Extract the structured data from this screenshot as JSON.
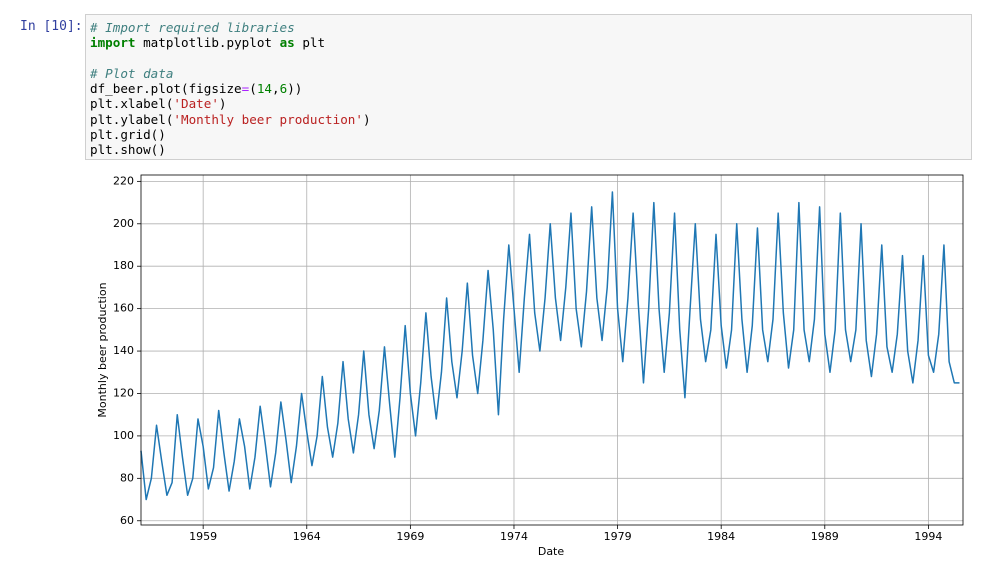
{
  "prompt": "In [10]:",
  "code": {
    "lines": [
      [
        {
          "t": "# Import required libraries",
          "k": "comment"
        }
      ],
      [
        {
          "t": "import",
          "k": "keyword"
        },
        {
          "t": " matplotlib.pyplot "
        },
        {
          "t": "as",
          "k": "keyword"
        },
        {
          "t": " plt"
        }
      ],
      [],
      [
        {
          "t": "# Plot data",
          "k": "comment"
        }
      ],
      [
        {
          "t": "df_beer.plot(figsize"
        },
        {
          "t": "=",
          "k": "operator"
        },
        {
          "t": "("
        },
        {
          "t": "14",
          "k": "number"
        },
        {
          "t": ","
        },
        {
          "t": "6",
          "k": "number"
        },
        {
          "t": "))"
        }
      ],
      [
        {
          "t": "plt.xlabel("
        },
        {
          "t": "'Date'",
          "k": "string"
        },
        {
          "t": ")"
        }
      ],
      [
        {
          "t": "plt.ylabel("
        },
        {
          "t": "'Monthly beer production'",
          "k": "string"
        },
        {
          "t": ")"
        }
      ],
      [
        {
          "t": "plt.grid()"
        }
      ],
      [
        {
          "t": "plt.show()"
        }
      ]
    ]
  },
  "chart_data": {
    "type": "line",
    "x_label": "Date",
    "y_label": "Monthly beer production",
    "color": "#1f77b4",
    "grid": true,
    "xlim": [
      1956,
      1995.67
    ],
    "xticks": [
      1959,
      1964,
      1969,
      1974,
      1979,
      1984,
      1989,
      1994
    ],
    "ylim": [
      58,
      223
    ],
    "yticks": [
      60,
      80,
      100,
      120,
      140,
      160,
      180,
      200,
      220
    ],
    "x": [
      1956,
      1956.25,
      1956.5,
      1956.75,
      1957,
      1957.25,
      1957.5,
      1957.75,
      1958,
      1958.25,
      1958.5,
      1958.75,
      1959,
      1959.25,
      1959.5,
      1959.75,
      1960,
      1960.25,
      1960.5,
      1960.75,
      1961,
      1961.25,
      1961.5,
      1961.75,
      1962,
      1962.25,
      1962.5,
      1962.75,
      1963,
      1963.25,
      1963.5,
      1963.75,
      1964,
      1964.25,
      1964.5,
      1964.75,
      1965,
      1965.25,
      1965.5,
      1965.75,
      1966,
      1966.25,
      1966.5,
      1966.75,
      1967,
      1967.25,
      1967.5,
      1967.75,
      1968,
      1968.25,
      1968.5,
      1968.75,
      1969,
      1969.25,
      1969.5,
      1969.75,
      1970,
      1970.25,
      1970.5,
      1970.75,
      1971,
      1971.25,
      1971.5,
      1971.75,
      1972,
      1972.25,
      1972.5,
      1972.75,
      1973,
      1973.25,
      1973.5,
      1973.75,
      1974,
      1974.25,
      1974.5,
      1974.75,
      1975,
      1975.25,
      1975.5,
      1975.75,
      1976,
      1976.25,
      1976.5,
      1976.75,
      1977,
      1977.25,
      1977.5,
      1977.75,
      1978,
      1978.25,
      1978.5,
      1978.75,
      1979,
      1979.25,
      1979.5,
      1979.75,
      1980,
      1980.25,
      1980.5,
      1980.75,
      1981,
      1981.25,
      1981.5,
      1981.75,
      1982,
      1982.25,
      1982.5,
      1982.75,
      1983,
      1983.25,
      1983.5,
      1983.75,
      1984,
      1984.25,
      1984.5,
      1984.75,
      1985,
      1985.25,
      1985.5,
      1985.75,
      1986,
      1986.25,
      1986.5,
      1986.75,
      1987,
      1987.25,
      1987.5,
      1987.75,
      1988,
      1988.25,
      1988.5,
      1988.75,
      1989,
      1989.25,
      1989.5,
      1989.75,
      1990,
      1990.25,
      1990.5,
      1990.75,
      1991,
      1991.25,
      1991.5,
      1991.75,
      1992,
      1992.25,
      1992.5,
      1992.75,
      1993,
      1993.25,
      1993.5,
      1993.75,
      1994,
      1994.25,
      1994.5,
      1994.75,
      1995,
      1995.25,
      1995.5
    ],
    "values": [
      93,
      70,
      80,
      105,
      88,
      72,
      78,
      110,
      90,
      72,
      80,
      108,
      95,
      75,
      85,
      112,
      92,
      74,
      88,
      108,
      95,
      75,
      90,
      114,
      96,
      76,
      92,
      116,
      98,
      78,
      95,
      120,
      102,
      86,
      100,
      128,
      104,
      90,
      106,
      135,
      108,
      92,
      110,
      140,
      110,
      94,
      112,
      142,
      115,
      90,
      118,
      152,
      120,
      100,
      125,
      158,
      128,
      108,
      130,
      165,
      135,
      118,
      140,
      172,
      138,
      120,
      145,
      178,
      150,
      110,
      155,
      190,
      160,
      130,
      165,
      195,
      158,
      140,
      165,
      200,
      165,
      145,
      170,
      205,
      160,
      142,
      168,
      208,
      165,
      145,
      170,
      215,
      160,
      135,
      165,
      205,
      162,
      125,
      160,
      210,
      160,
      130,
      158,
      205,
      150,
      118,
      160,
      200,
      155,
      135,
      150,
      195,
      152,
      132,
      150,
      200,
      155,
      130,
      152,
      198,
      150,
      135,
      155,
      205,
      158,
      132,
      150,
      210,
      150,
      135,
      155,
      208,
      148,
      130,
      150,
      205,
      150,
      135,
      150,
      200,
      145,
      128,
      148,
      190,
      142,
      130,
      148,
      185,
      140,
      125,
      145,
      185,
      138,
      130,
      148,
      190,
      135,
      125,
      125
    ]
  }
}
